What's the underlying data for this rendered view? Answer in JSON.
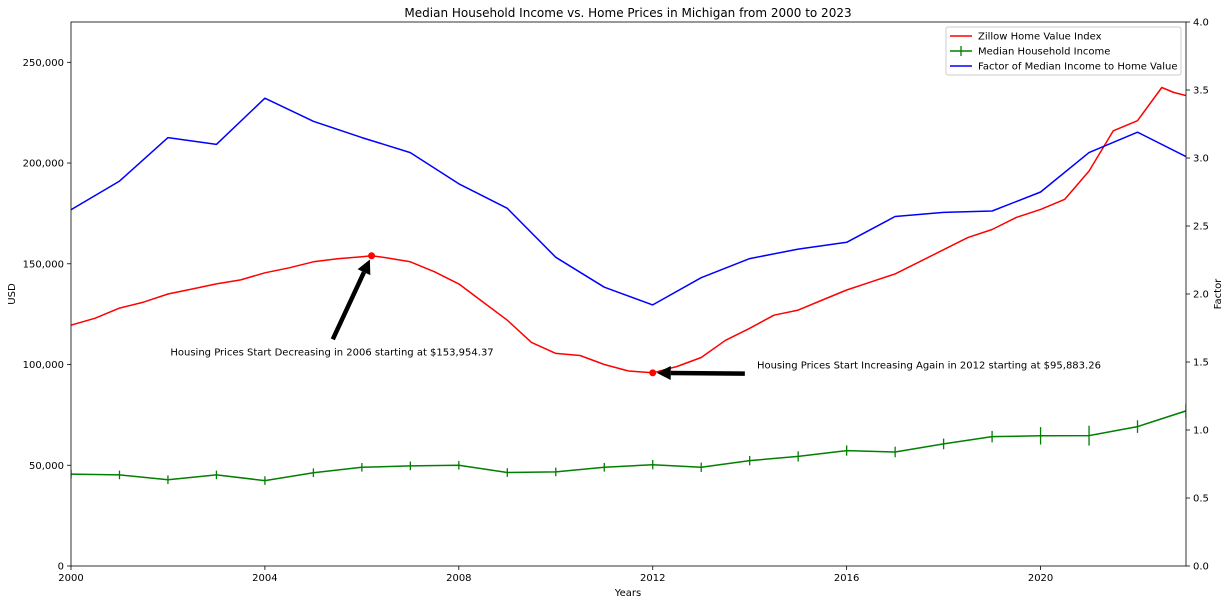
{
  "chart_data": {
    "type": "line",
    "title": "Median Household Income vs. Home Prices in Michigan from 2000 to 2023",
    "xlabel": "Years",
    "ylabel_left": "USD",
    "ylabel_right": "Factor",
    "xlim": [
      2000,
      2023
    ],
    "ylim_left": [
      0,
      270000
    ],
    "ylim_right": [
      0,
      4.0
    ],
    "x_ticks": [
      2000,
      2004,
      2008,
      2012,
      2016,
      2020
    ],
    "x_tick_labels": [
      "2000",
      "2004",
      "2008",
      "2012",
      "2016",
      "2020"
    ],
    "y_left_ticks": [
      0,
      50000,
      100000,
      150000,
      200000,
      250000
    ],
    "y_left_tick_labels": [
      "0",
      "50,000",
      "100,000",
      "150,000",
      "200,000",
      "250,000"
    ],
    "y_right_ticks": [
      0,
      0.5,
      1.0,
      1.5,
      2.0,
      2.5,
      3.0,
      3.5,
      4.0
    ],
    "y_right_tick_labels": [
      "0.0",
      "0.5",
      "1.0",
      "1.5",
      "2.0",
      "2.5",
      "3.0",
      "3.5",
      "4.0"
    ],
    "grid": false,
    "legend_position": "top-right",
    "series": [
      {
        "name": "Zillow Home Value Index",
        "axis": "left",
        "color": "#ff0000",
        "marker": "none",
        "x": [
          2000,
          2000.5,
          2001,
          2001.5,
          2002,
          2002.5,
          2003,
          2003.5,
          2004,
          2004.5,
          2005,
          2005.5,
          2006,
          2006.2,
          2006.5,
          2007,
          2007.5,
          2008,
          2008.5,
          2009,
          2009.5,
          2010,
          2010.5,
          2011,
          2011.5,
          2012,
          2012.5,
          2013,
          2013.5,
          2014,
          2014.5,
          2015,
          2015.5,
          2016,
          2016.5,
          2017,
          2017.5,
          2018,
          2018.5,
          2019,
          2019.5,
          2020,
          2020.5,
          2021,
          2021.5,
          2022,
          2022.5,
          2022.75,
          2023
        ],
        "values": [
          119500,
          123000,
          128000,
          131000,
          135000,
          137500,
          140000,
          142000,
          145500,
          148000,
          151000,
          152500,
          153500,
          153954,
          153000,
          151000,
          146000,
          140000,
          131000,
          122000,
          111000,
          105500,
          104500,
          100000,
          96800,
          95883,
          99000,
          103500,
          112000,
          118000,
          124500,
          127000,
          132000,
          137000,
          141000,
          145000,
          151000,
          157000,
          163000,
          167000,
          173000,
          177000,
          182000,
          196000,
          216000,
          221000,
          237500,
          235000,
          233500
        ]
      },
      {
        "name": "Median Household Income",
        "axis": "left",
        "color": "#008000",
        "marker": "vertical-errorbar",
        "x": [
          2000,
          2001,
          2002,
          2003,
          2004,
          2005,
          2006,
          2007,
          2008,
          2009,
          2010,
          2011,
          2012,
          2013,
          2014,
          2015,
          2016,
          2017,
          2018,
          2019,
          2020,
          2021,
          2022,
          2023
        ],
        "values": [
          45600,
          45200,
          42800,
          45200,
          42400,
          46300,
          49000,
          49700,
          50000,
          46400,
          46700,
          49000,
          50300,
          49000,
          52300,
          54400,
          57300,
          56600,
          60600,
          64200,
          64600,
          64700,
          69200,
          77000
        ],
        "errors": [
          400,
          400,
          400,
          400,
          400,
          400,
          400,
          400,
          400,
          400,
          400,
          400,
          600,
          600,
          600,
          800,
          800,
          900,
          900,
          1100,
          2600,
          3200,
          1400,
          1800
        ]
      },
      {
        "name": "Factor of Median Income to Home Value",
        "axis": "right",
        "color": "#0000ff",
        "marker": "none",
        "x": [
          2000,
          2001,
          2002,
          2003,
          2004,
          2005,
          2006,
          2007,
          2008,
          2009,
          2010,
          2011,
          2012,
          2013,
          2014,
          2015,
          2016,
          2017,
          2018,
          2019,
          2020,
          2021,
          2022,
          2023
        ],
        "values": [
          2.62,
          2.83,
          3.15,
          3.1,
          3.44,
          3.27,
          3.15,
          3.04,
          2.81,
          2.63,
          2.27,
          2.05,
          1.92,
          2.12,
          2.26,
          2.33,
          2.38,
          2.57,
          2.6,
          2.61,
          2.75,
          3.04,
          3.19,
          3.01
        ]
      }
    ],
    "highlight_points": [
      {
        "x": 2006.2,
        "y": 153954.37,
        "color": "#ff0000"
      },
      {
        "x": 2012,
        "y": 95883.26,
        "color": "#ff0000"
      }
    ],
    "annotations": [
      {
        "text": "Housing Prices Start Decreasing in 2006 starting at $153,954.37",
        "point_x": 2006.2,
        "point_y": 153954.37,
        "text_x": 2002.05,
        "text_y": 104500,
        "arrow_tail_x": 2005.4,
        "arrow_tail_y": 112500
      },
      {
        "text": "Housing Prices Start Increasing Again in 2012 starting at $95,883.26",
        "point_x": 2012,
        "point_y": 95883.26,
        "text_x": 2014.15,
        "text_y": 98000,
        "arrow_tail_x": 2013.9,
        "arrow_tail_y": 95500
      }
    ]
  }
}
